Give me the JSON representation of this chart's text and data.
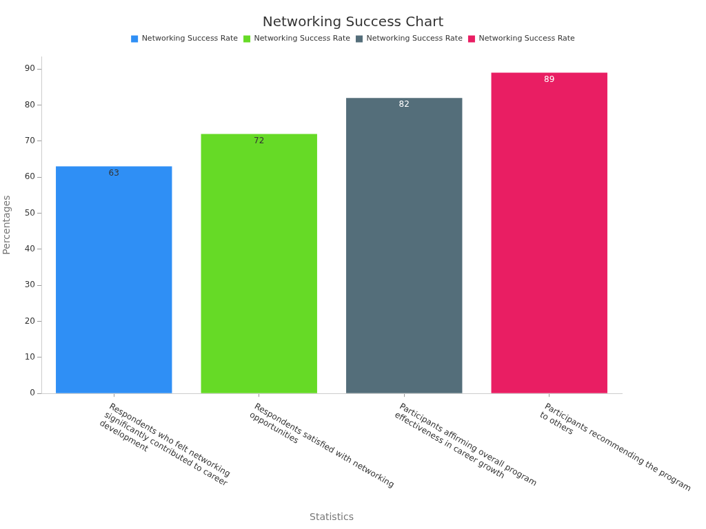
{
  "chart_data": {
    "type": "bar",
    "title": "Networking Success Chart",
    "xlabel": "Statistics",
    "ylabel": "Percentages",
    "categories": [
      "Respondents who felt networking significantly contributed to career development",
      "Respondents satisfied with networking opportunities",
      "Participants affirming overall program effectiveness in career growth",
      "Participants recommending the program to others"
    ],
    "series": [
      {
        "name": "Networking Success Rate",
        "color": "#2f8ff5",
        "values": [
          63,
          null,
          null,
          null
        ]
      },
      {
        "name": "Networking Success Rate",
        "color": "#66da26",
        "values": [
          null,
          72,
          null,
          null
        ]
      },
      {
        "name": "Networking Success Rate",
        "color": "#546e7a",
        "values": [
          null,
          null,
          82,
          null
        ]
      },
      {
        "name": "Networking Success Rate",
        "color": "#e91e63",
        "values": [
          null,
          null,
          null,
          89
        ]
      }
    ],
    "ylim": [
      0,
      93.5
    ],
    "yticks": [
      0,
      10,
      20,
      30,
      40,
      50,
      60,
      70,
      80,
      90
    ],
    "legend": "top",
    "data_labels": true
  }
}
